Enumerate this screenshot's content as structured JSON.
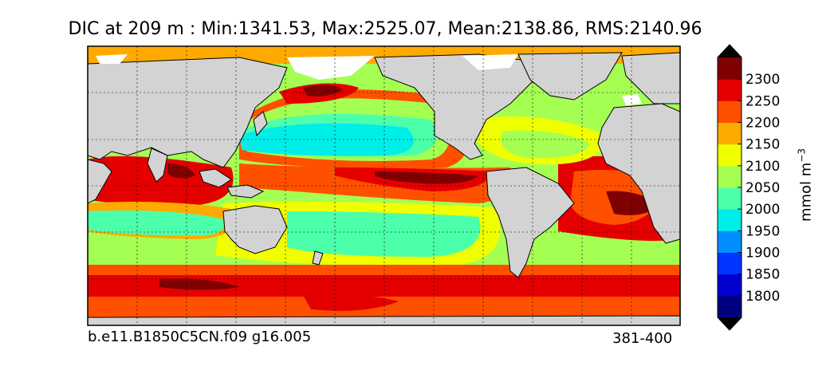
{
  "chart_data": {
    "type": "heatmap",
    "title": "DIC at 209 m : Min:1341.53, Max:2525.07, Mean:2138.86, RMS:2140.96",
    "field": "DIC",
    "depth_m": 209,
    "stats": {
      "min": 1341.53,
      "max": 2525.07,
      "mean": 2138.86,
      "rms": 2140.96
    },
    "colorbar": {
      "label": "mmol m",
      "label_exponent": "−3",
      "levels": [
        1750,
        1800,
        1850,
        1900,
        1950,
        2000,
        2050,
        2100,
        2150,
        2200,
        2250,
        2300,
        2350
      ],
      "tick_labels": [
        "1800",
        "1850",
        "1900",
        "1950",
        "2000",
        "2050",
        "2100",
        "2150",
        "2200",
        "2250",
        "2300"
      ],
      "colors": [
        "#00007f",
        "#0000d0",
        "#0035ff",
        "#008fff",
        "#00eee8",
        "#4cffaa",
        "#a4ff52",
        "#f0ff00",
        "#ffaa00",
        "#ff5000",
        "#e50000",
        "#7f0000"
      ],
      "extend": "both",
      "extend_low_color": "#000000",
      "extend_high_color": "#000000"
    },
    "map": {
      "projection": "cylindrical",
      "land_color": "#d3d3d3",
      "grid": true,
      "grid_style": "dotted"
    },
    "footer_left": "b.e11.B1850C5CN.f09 g16.005",
    "footer_right": "381-400"
  }
}
